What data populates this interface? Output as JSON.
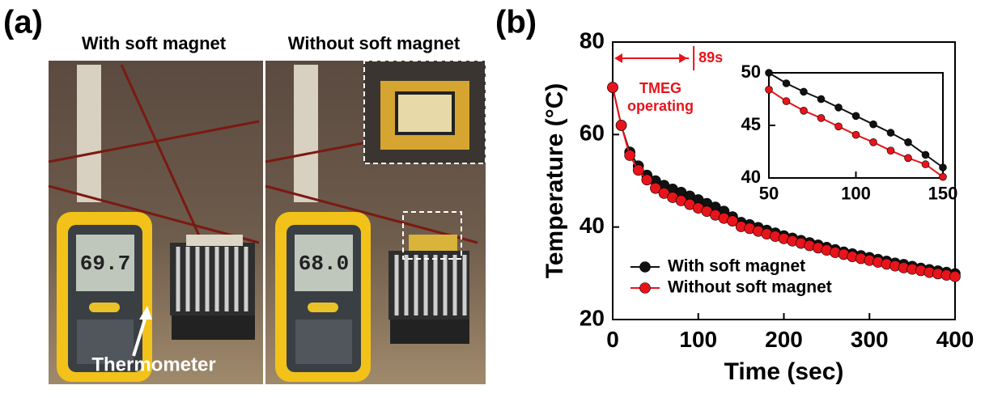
{
  "panel_a": {
    "label": "(a)",
    "left_title": "With soft magnet",
    "right_title": "Without soft magnet",
    "left_reading": "69.7",
    "right_reading": "68.0",
    "callout": "Thermometer"
  },
  "panel_b": {
    "label": "(b)"
  },
  "chart_data": [
    {
      "type": "line",
      "xlabel": "Time (sec)",
      "ylabel": "Temperature (°C)",
      "x": [
        0,
        10,
        20,
        30,
        40,
        50,
        60,
        70,
        80,
        90,
        100,
        110,
        120,
        130,
        140,
        150,
        160,
        170,
        180,
        190,
        200,
        210,
        220,
        230,
        240,
        250,
        260,
        270,
        280,
        290,
        300,
        310,
        320,
        330,
        340,
        350,
        360,
        370,
        380,
        390,
        400
      ],
      "xlim": [
        0,
        400
      ],
      "xticks": [
        0,
        100,
        200,
        300,
        400
      ],
      "ylim": [
        20,
        80
      ],
      "yticks": [
        20,
        40,
        60,
        80
      ],
      "legend": "lower left",
      "series": [
        {
          "name": "With soft magnet",
          "color": "#111111",
          "values": [
            70.2,
            62,
            56.2,
            53.2,
            51.2,
            50,
            49,
            48.2,
            47.5,
            46.7,
            45.9,
            45.1,
            44.3,
            43.4,
            42.2,
            41,
            40.5,
            39.9,
            39.3,
            38.7,
            38.1,
            37.6,
            37.1,
            36.6,
            36.1,
            35.6,
            35.1,
            34.6,
            34.2,
            33.8,
            33.4,
            33,
            32.6,
            32.2,
            31.9,
            31.5,
            31.1,
            30.8,
            30.5,
            30.2,
            29.9
          ]
        },
        {
          "name": "Without soft magnet",
          "color": "#e8141b",
          "values": [
            70.2,
            62,
            55.5,
            52.3,
            50.2,
            48.4,
            47.3,
            46.4,
            45.7,
            44.9,
            44.1,
            43.4,
            42.6,
            41.9,
            41.3,
            40.1,
            39.7,
            39.1,
            38.5,
            38,
            37.5,
            37,
            36.5,
            36,
            35.5,
            35,
            34.5,
            34.1,
            33.6,
            33.2,
            32.8,
            32.4,
            32,
            31.6,
            31.2,
            30.9,
            30.6,
            30.2,
            29.9,
            29.6,
            29.3
          ]
        }
      ],
      "annotation": {
        "x": 89,
        "label": "89s",
        "lines": [
          "TMEG",
          "operating"
        ],
        "color": "#e8141b"
      }
    },
    {
      "type": "line",
      "x": [
        50,
        60,
        70,
        80,
        90,
        100,
        110,
        120,
        130,
        140,
        150
      ],
      "xlim": [
        50,
        150
      ],
      "xticks": [
        50,
        100,
        150
      ],
      "ylim": [
        40,
        50
      ],
      "yticks": [
        40,
        45,
        50
      ],
      "series": [
        {
          "color": "#111111",
          "values": [
            50,
            49,
            48.2,
            47.5,
            46.7,
            45.9,
            45.1,
            44.3,
            43.4,
            42.2,
            41
          ]
        },
        {
          "color": "#e8141b",
          "values": [
            48.4,
            47.3,
            46.4,
            45.7,
            44.9,
            44.1,
            43.4,
            42.6,
            41.9,
            41.3,
            40.1
          ]
        }
      ]
    }
  ]
}
